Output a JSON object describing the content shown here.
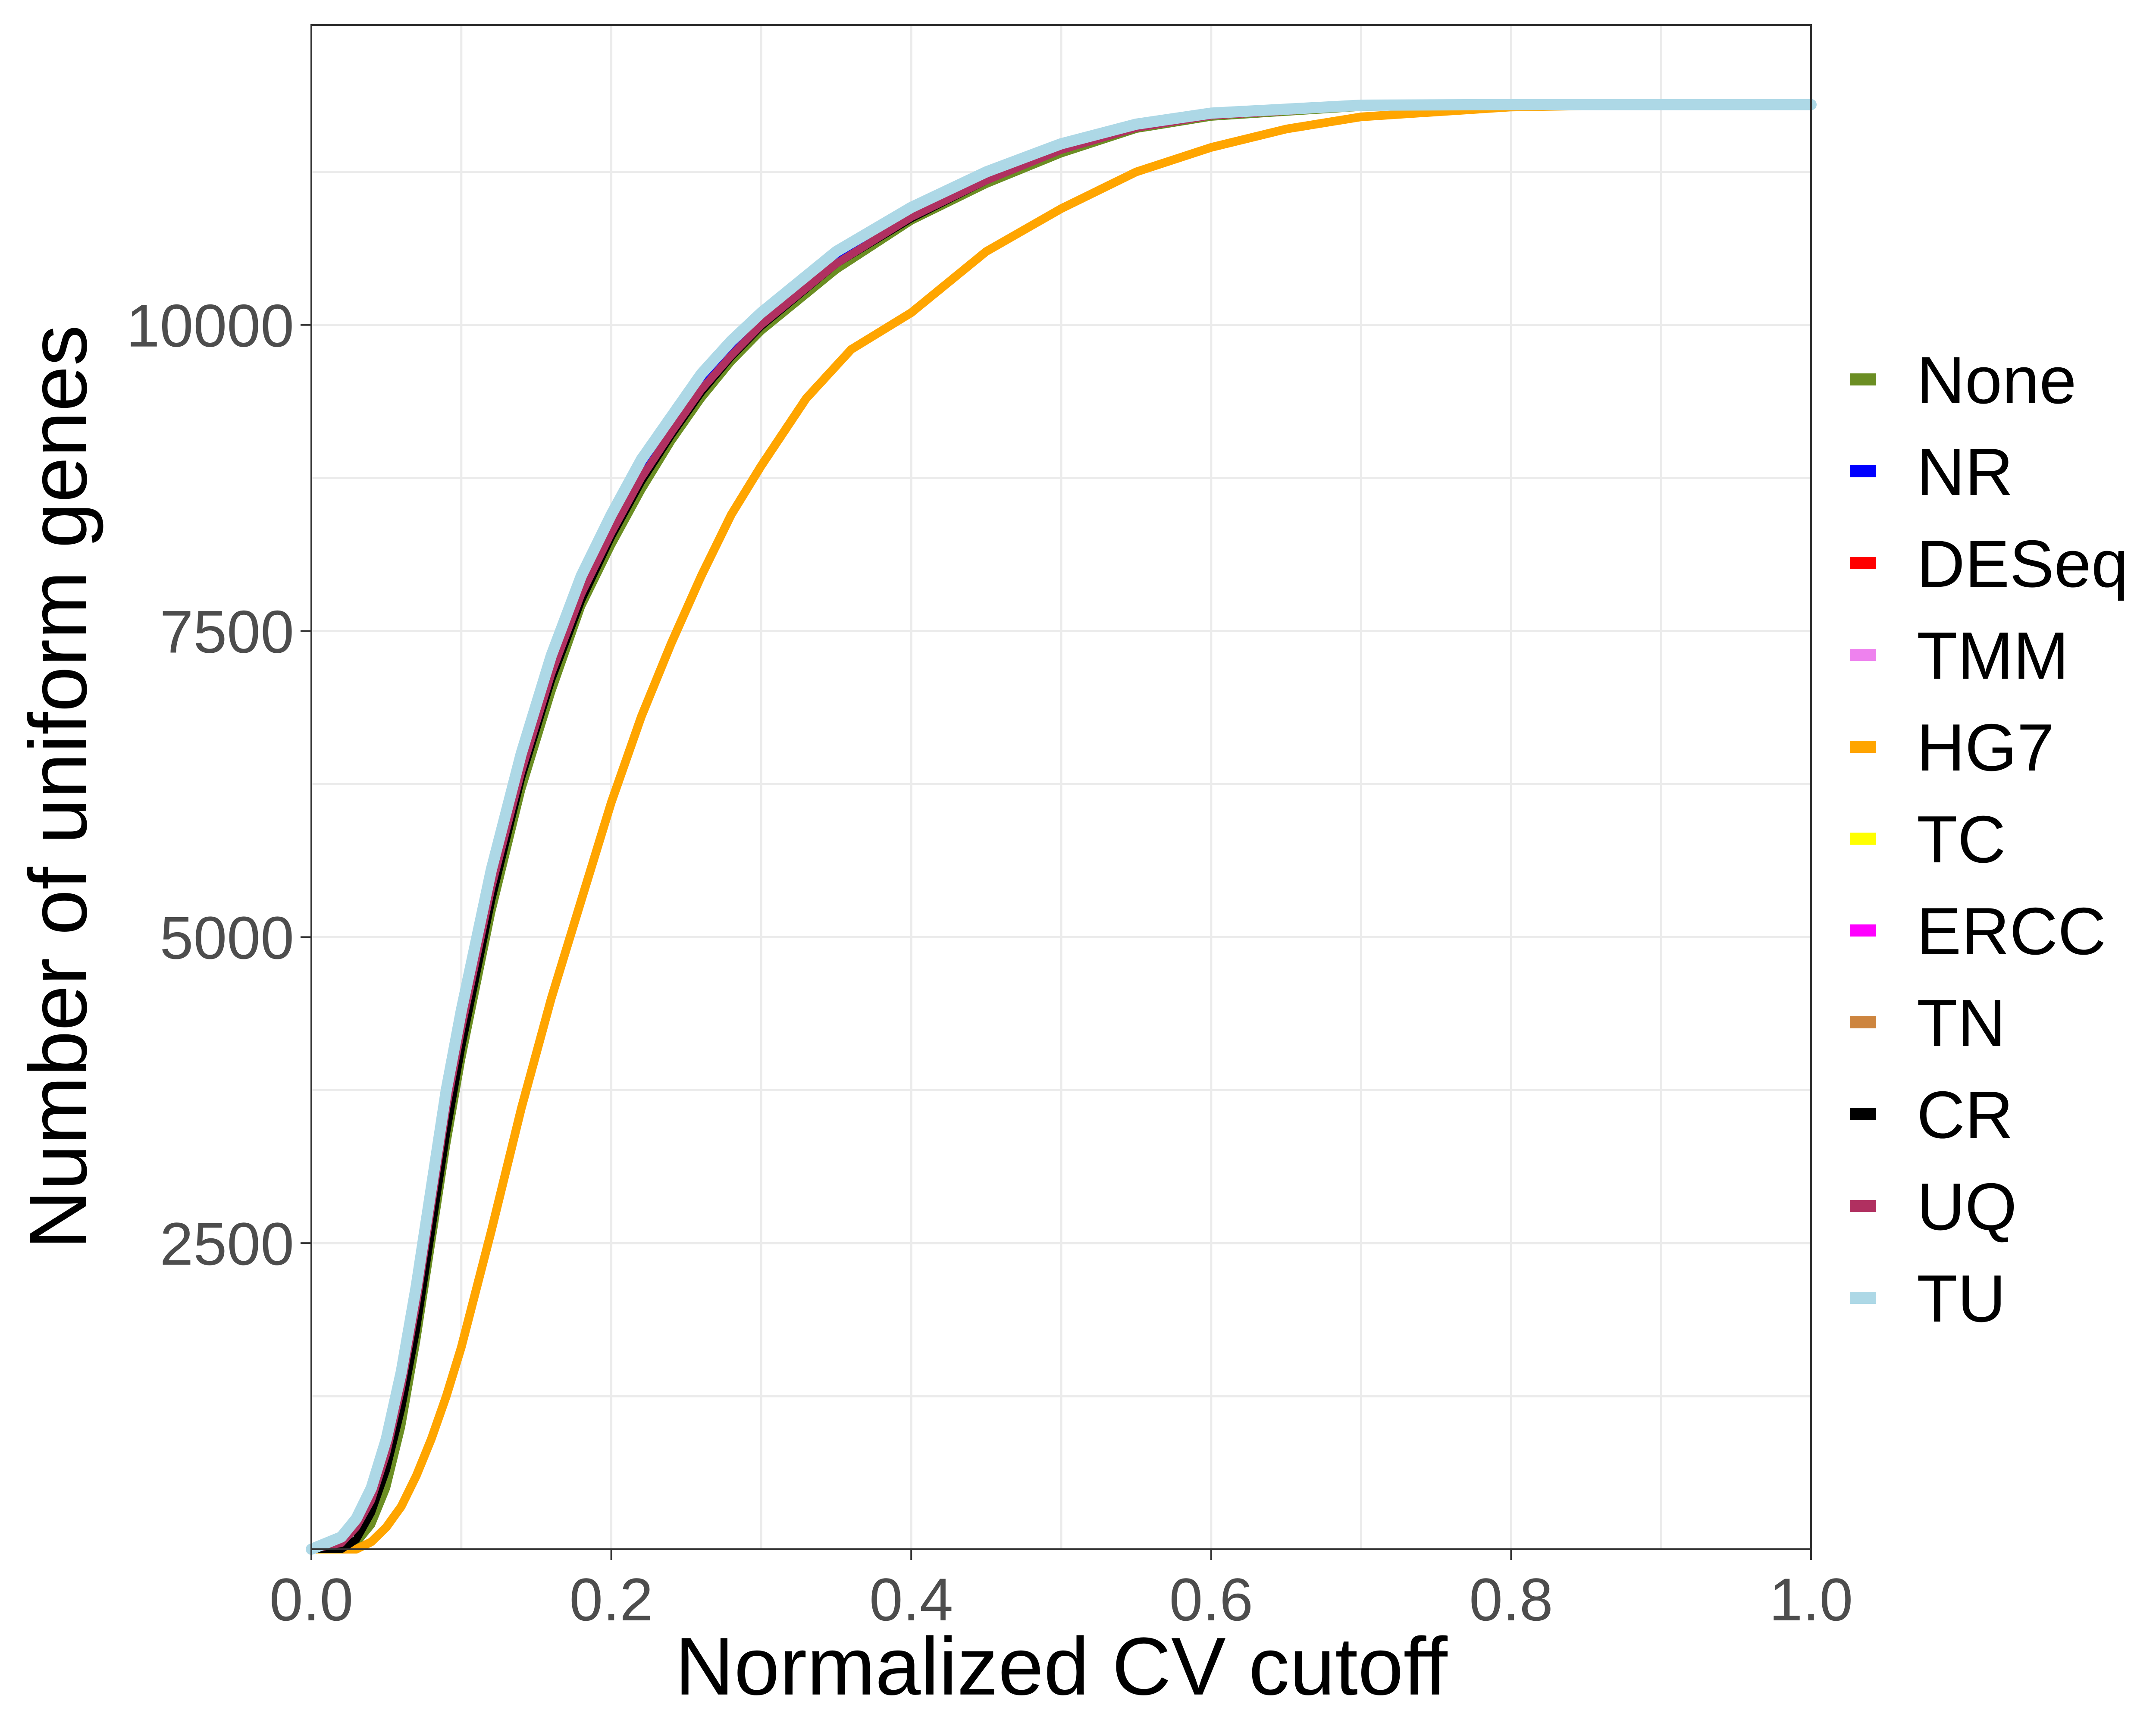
{
  "chart_data": {
    "type": "line",
    "title": "",
    "xlabel": "Normalized CV cutoff",
    "ylabel": "Number of uniform genes",
    "xlim": [
      0,
      1
    ],
    "ylim": [
      0,
      12450
    ],
    "x_ticks": [
      0.0,
      0.2,
      0.4,
      0.6,
      0.8,
      1.0
    ],
    "x_tick_labels": [
      "0.0",
      "0.2",
      "0.4",
      "0.6",
      "0.8",
      "1.0"
    ],
    "y_ticks": [
      2500,
      5000,
      7500,
      10000
    ],
    "y_tick_labels": [
      "2500",
      "5000",
      "7500",
      "10000"
    ],
    "grid": true,
    "legend_position": "right",
    "series": [
      {
        "name": "None",
        "color": "#6b8e23",
        "x": [
          0,
          0.02,
          0.03,
          0.04,
          0.05,
          0.06,
          0.07,
          0.08,
          0.09,
          0.1,
          0.12,
          0.14,
          0.16,
          0.18,
          0.2,
          0.22,
          0.24,
          0.26,
          0.28,
          0.3,
          0.35,
          0.4,
          0.45,
          0.5,
          0.55,
          0.6,
          0.7,
          0.8,
          0.9,
          1.0
        ],
        "y": [
          0,
          0,
          50,
          200,
          500,
          1000,
          1700,
          2500,
          3300,
          4000,
          5200,
          6200,
          7000,
          7700,
          8200,
          8650,
          9050,
          9400,
          9700,
          9950,
          10450,
          10850,
          11150,
          11400,
          11600,
          11700,
          11780,
          11800,
          11800,
          11800
        ]
      },
      {
        "name": "NR",
        "color": "#0000ff",
        "x": [
          0,
          0.02,
          0.03,
          0.04,
          0.05,
          0.06,
          0.07,
          0.08,
          0.09,
          0.1,
          0.12,
          0.14,
          0.16,
          0.18,
          0.2,
          0.22,
          0.24,
          0.26,
          0.28,
          0.3,
          0.35,
          0.4,
          0.45,
          0.5,
          0.55,
          0.6,
          0.7,
          0.8,
          0.9,
          1.0
        ],
        "y": [
          0,
          60,
          200,
          420,
          800,
          1350,
          2050,
          2850,
          3650,
          4300,
          5450,
          6400,
          7200,
          7850,
          8350,
          8800,
          9150,
          9500,
          9780,
          10030,
          10530,
          10900,
          11200,
          11450,
          11620,
          11720,
          11790,
          11800,
          11800,
          11800
        ]
      },
      {
        "name": "DESeq",
        "color": "#ff0000",
        "x": [
          0,
          0.02,
          0.03,
          0.04,
          0.05,
          0.06,
          0.07,
          0.08,
          0.09,
          0.1,
          0.12,
          0.14,
          0.16,
          0.18,
          0.2,
          0.22,
          0.24,
          0.26,
          0.28,
          0.3,
          0.35,
          0.4,
          0.45,
          0.5,
          0.55,
          0.6,
          0.7,
          0.8,
          0.9,
          1.0
        ],
        "y": [
          0,
          50,
          180,
          400,
          780,
          1320,
          2000,
          2800,
          3600,
          4250,
          5400,
          6350,
          7150,
          7800,
          8300,
          8750,
          9120,
          9470,
          9750,
          10000,
          10500,
          10880,
          11180,
          11430,
          11610,
          11710,
          11785,
          11800,
          11800,
          11800
        ]
      },
      {
        "name": "TMM",
        "color": "#ee82ee",
        "x": [
          0,
          0.02,
          0.03,
          0.04,
          0.05,
          0.06,
          0.07,
          0.08,
          0.09,
          0.1,
          0.12,
          0.14,
          0.16,
          0.18,
          0.2,
          0.22,
          0.24,
          0.26,
          0.28,
          0.3,
          0.35,
          0.4,
          0.45,
          0.5,
          0.55,
          0.6,
          0.7,
          0.8,
          0.9,
          1.0
        ],
        "y": [
          0,
          50,
          180,
          400,
          780,
          1320,
          2000,
          2800,
          3600,
          4250,
          5400,
          6350,
          7150,
          7800,
          8300,
          8750,
          9120,
          9470,
          9750,
          10000,
          10500,
          10880,
          11180,
          11430,
          11610,
          11710,
          11785,
          11800,
          11800,
          11800
        ]
      },
      {
        "name": "HG7",
        "color": "#ffa500",
        "x": [
          0,
          0.03,
          0.04,
          0.05,
          0.06,
          0.07,
          0.08,
          0.09,
          0.1,
          0.12,
          0.14,
          0.16,
          0.18,
          0.2,
          0.22,
          0.24,
          0.26,
          0.28,
          0.3,
          0.33,
          0.36,
          0.4,
          0.45,
          0.5,
          0.55,
          0.6,
          0.65,
          0.7,
          0.8,
          0.9,
          1.0
        ],
        "y": [
          0,
          0,
          60,
          180,
          350,
          600,
          900,
          1250,
          1650,
          2600,
          3600,
          4500,
          5300,
          6100,
          6800,
          7400,
          7950,
          8450,
          8850,
          9400,
          9800,
          10100,
          10600,
          10950,
          11250,
          11450,
          11600,
          11700,
          11780,
          11800,
          11800
        ]
      },
      {
        "name": "TC",
        "color": "#ffff00",
        "x": [
          0,
          0.02,
          0.03,
          0.04,
          0.05,
          0.06,
          0.07,
          0.08,
          0.09,
          0.1,
          0.12,
          0.14,
          0.16,
          0.18,
          0.2,
          0.22,
          0.24,
          0.26,
          0.28,
          0.3,
          0.35,
          0.4,
          0.45,
          0.5,
          0.55,
          0.6,
          0.7,
          0.8,
          0.9,
          1.0
        ],
        "y": [
          0,
          50,
          180,
          400,
          780,
          1320,
          2000,
          2800,
          3600,
          4250,
          5400,
          6350,
          7150,
          7800,
          8300,
          8750,
          9120,
          9470,
          9750,
          10000,
          10500,
          10880,
          11180,
          11430,
          11610,
          11710,
          11785,
          11800,
          11800,
          11800
        ]
      },
      {
        "name": "ERCC",
        "color": "#ff00ff",
        "x": [
          0,
          0.02,
          0.03,
          0.04,
          0.05,
          0.06,
          0.07,
          0.08,
          0.09,
          0.1,
          0.12,
          0.14,
          0.16,
          0.18,
          0.2,
          0.22,
          0.24,
          0.26,
          0.28,
          0.3,
          0.35,
          0.4,
          0.45,
          0.5,
          0.55,
          0.6,
          0.7,
          0.8,
          0.9,
          1.0
        ],
        "y": [
          0,
          50,
          180,
          400,
          780,
          1320,
          2000,
          2800,
          3600,
          4250,
          5400,
          6350,
          7150,
          7800,
          8300,
          8750,
          9120,
          9470,
          9750,
          10000,
          10500,
          10880,
          11180,
          11430,
          11610,
          11710,
          11785,
          11800,
          11800,
          11800
        ]
      },
      {
        "name": "TN",
        "color": "#cd853f",
        "x": [
          0,
          0.02,
          0.03,
          0.04,
          0.05,
          0.06,
          0.07,
          0.08,
          0.09,
          0.1,
          0.12,
          0.14,
          0.16,
          0.18,
          0.2,
          0.22,
          0.24,
          0.26,
          0.28,
          0.3,
          0.35,
          0.4,
          0.45,
          0.5,
          0.55,
          0.6,
          0.7,
          0.8,
          0.9,
          1.0
        ],
        "y": [
          0,
          50,
          180,
          400,
          780,
          1320,
          2000,
          2800,
          3600,
          4250,
          5400,
          6350,
          7150,
          7800,
          8300,
          8750,
          9120,
          9470,
          9750,
          10000,
          10500,
          10880,
          11180,
          11430,
          11610,
          11710,
          11785,
          11800,
          11800,
          11800
        ]
      },
      {
        "name": "CR",
        "color": "#000000",
        "x": [
          0,
          0.02,
          0.03,
          0.04,
          0.05,
          0.06,
          0.07,
          0.08,
          0.09,
          0.1,
          0.12,
          0.14,
          0.16,
          0.18,
          0.2,
          0.22,
          0.24,
          0.26,
          0.28,
          0.3,
          0.35,
          0.4,
          0.45,
          0.5,
          0.55,
          0.6,
          0.7,
          0.8,
          0.9,
          1.0
        ],
        "y": [
          0,
          0,
          80,
          300,
          650,
          1150,
          1800,
          2600,
          3400,
          4100,
          5300,
          6300,
          7100,
          7750,
          8270,
          8720,
          9100,
          9450,
          9740,
          9990,
          10500,
          10870,
          11180,
          11430,
          11610,
          11720,
          11790,
          11800,
          11800,
          11800
        ]
      },
      {
        "name": "UQ",
        "color": "#b03060",
        "x": [
          0,
          0.02,
          0.03,
          0.04,
          0.05,
          0.06,
          0.07,
          0.08,
          0.09,
          0.1,
          0.12,
          0.14,
          0.16,
          0.18,
          0.2,
          0.22,
          0.24,
          0.26,
          0.28,
          0.3,
          0.35,
          0.4,
          0.45,
          0.5,
          0.55,
          0.6,
          0.7,
          0.8,
          0.9,
          1.0
        ],
        "y": [
          0,
          50,
          180,
          400,
          780,
          1320,
          2000,
          2800,
          3600,
          4250,
          5400,
          6350,
          7150,
          7800,
          8300,
          8750,
          9120,
          9470,
          9750,
          10000,
          10500,
          10880,
          11180,
          11430,
          11610,
          11710,
          11785,
          11800,
          11800,
          11800
        ]
      },
      {
        "name": "TU",
        "color": "#add8e6",
        "x": [
          0,
          0.02,
          0.03,
          0.04,
          0.05,
          0.06,
          0.07,
          0.08,
          0.09,
          0.1,
          0.12,
          0.14,
          0.16,
          0.18,
          0.2,
          0.22,
          0.24,
          0.26,
          0.28,
          0.3,
          0.35,
          0.4,
          0.45,
          0.5,
          0.55,
          0.6,
          0.7,
          0.8,
          0.9,
          1.0
        ],
        "y": [
          0,
          100,
          250,
          500,
          900,
          1450,
          2150,
          2950,
          3750,
          4400,
          5550,
          6500,
          7300,
          7950,
          8450,
          8900,
          9250,
          9600,
          9870,
          10100,
          10600,
          10960,
          11250,
          11480,
          11640,
          11730,
          11795,
          11800,
          11800,
          11800
        ]
      }
    ]
  }
}
